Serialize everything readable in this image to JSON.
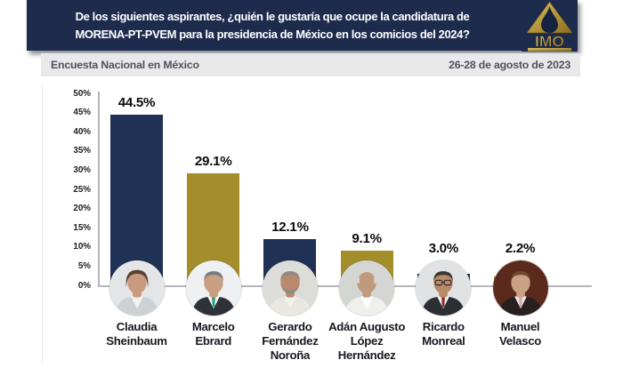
{
  "header": {
    "title_line1": "De los siguientes aspirantes, ¿quién le gustaría que ocupe la candidatura de",
    "title_line2": "MORENA-PT-PVEM para la presidencia de México en los comicios del 2024?",
    "logo_text": "IMO"
  },
  "subheader": {
    "left": "Encuesta Nacional en México",
    "right": "26-28 de agosto de 2023"
  },
  "colors": {
    "header_bg": "#1d2b4d",
    "bar_navy": "#1f3154",
    "bar_gold": "#a48e2c",
    "logo_gold": "#c3a040",
    "axis": "#b6b6bc",
    "subheader_bg": "#e9e9eb",
    "subheader_text": "#505159",
    "value_text": "#0c0c12",
    "name_text": "#171720"
  },
  "chart_data": {
    "type": "bar",
    "title": "De los siguientes aspirantes, ¿quién le gustaría que ocupe la candidatura de MORENA-PT-PVEM para la presidencia de México en los comicios del 2024?",
    "categories": [
      "Claudia Sheinbaum",
      "Marcelo Ebrard",
      "Gerardo Fernández Noroña",
      "Adán Augusto López Hernández",
      "Ricardo Monreal",
      "Manuel Velasco"
    ],
    "values": [
      44.5,
      29.1,
      12.1,
      9.1,
      3.0,
      2.2
    ],
    "value_labels": [
      "44.5%",
      "29.1%",
      "12.1%",
      "9.1%",
      "3.0%",
      "2.2%"
    ],
    "bar_colors": [
      "#1f3154",
      "#a48e2c",
      "#1f3154",
      "#a48e2c",
      "#1f3154",
      "#a48e2c"
    ],
    "xlabel": "",
    "ylabel": "",
    "ylim": [
      0,
      50
    ],
    "yticks": [
      "0%",
      "5%",
      "10%",
      "15%",
      "20%",
      "25%",
      "30%",
      "35%",
      "40%",
      "45%",
      "50%"
    ],
    "grid": false,
    "legend": "none"
  },
  "candidates": [
    {
      "display": "Claudia\nSheinbaum",
      "avatar": {
        "bg": "#e4e5e7",
        "skin": "#c89a7e",
        "hair": "#5b4232",
        "suit": "#cdd1d4",
        "shirt": "#f2f2f0",
        "tie": "",
        "hair_style": "long",
        "beard": "",
        "glasses": false
      }
    },
    {
      "display": "Marcelo\nEbrard",
      "avatar": {
        "bg": "#eef0f1",
        "skin": "#c99f82",
        "hair": "#7a7d80",
        "suit": "#2e3238",
        "shirt": "#f5f5f3",
        "tie": "#2aa07a",
        "hair_style": "short",
        "beard": "",
        "glasses": false
      }
    },
    {
      "display": "Gerardo\nFernández\nNoroña",
      "avatar": {
        "bg": "#dcdcd8",
        "skin": "#b98a6e",
        "hair": "#8e8a84",
        "suit": "#e9e7e1",
        "shirt": "#f4f2ec",
        "tie": "",
        "hair_style": "short",
        "beard": "#8e8a84",
        "glasses": false
      }
    },
    {
      "display": "Adán Augusto\nLópez\nHernández",
      "avatar": {
        "bg": "#d3d6d2",
        "skin": "#c09a7c",
        "hair": "#d8d8d4",
        "suit": "#efefec",
        "shirt": "#ffffff",
        "tie": "",
        "hair_style": "bald",
        "beard": "",
        "glasses": false
      }
    },
    {
      "display": "Ricardo\nMonreal",
      "avatar": {
        "bg": "#e1e2e4",
        "skin": "#b98a68",
        "hair": "#3c3834",
        "suit": "#2b2e33",
        "shirt": "#f2f2f2",
        "tie": "#8f2a2a",
        "hair_style": "short",
        "beard": "",
        "glasses": true
      }
    },
    {
      "display": "Manuel\nVelasco",
      "avatar": {
        "bg": "#5c291d",
        "skin": "#caa184",
        "hair": "#6b4a2e",
        "suit": "#26211f",
        "shirt": "#efe6e4",
        "tie": "#d8a8b0",
        "hair_style": "short",
        "beard": "",
        "glasses": false
      }
    }
  ]
}
